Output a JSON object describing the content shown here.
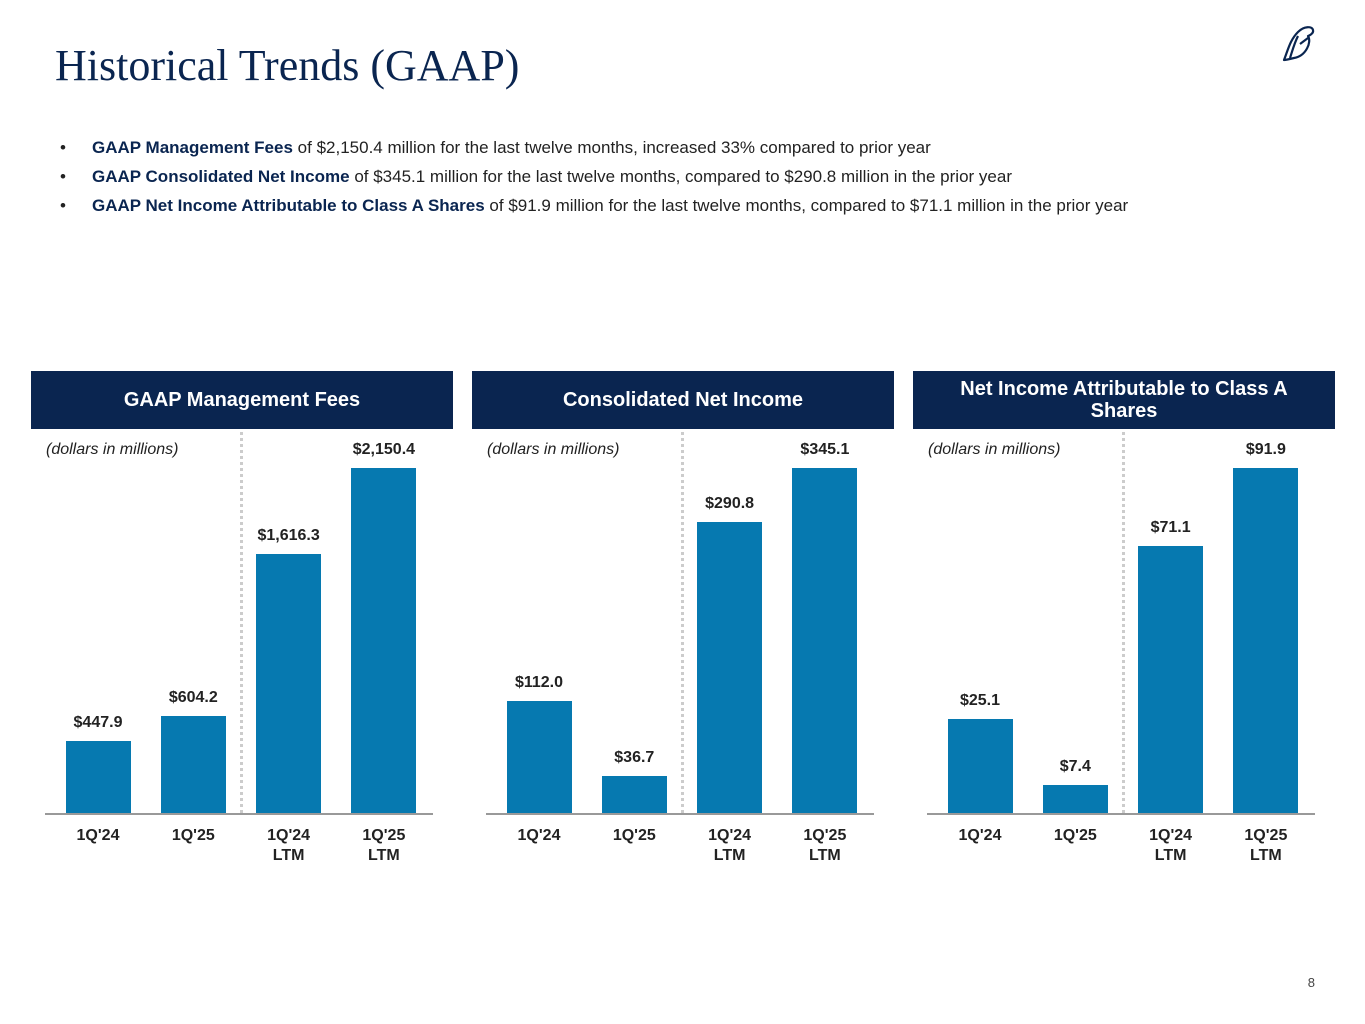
{
  "title": "Historical Trends (GAAP)",
  "bullets": [
    {
      "bold": "GAAP Management Fees",
      "text": "of $2,150.4 million for the last twelve months, increased 33% compared to prior year"
    },
    {
      "bold": "GAAP Consolidated Net Income",
      "text": "of $345.1 million for the last twelve months, compared to $290.8 million in the prior year"
    },
    {
      "bold": "GAAP Net Income Attributable to Class A Shares",
      "text": "of $91.9 million for the last twelve months, compared to $71.1 million in the prior year"
    }
  ],
  "page_number": "8",
  "chart_data": [
    {
      "type": "bar",
      "title": "GAAP Management Fees",
      "subtitle": "(dollars in millions)",
      "categories": [
        "1Q'24",
        "1Q'25",
        "1Q'24 LTM",
        "1Q'25 LTM"
      ],
      "values": [
        447.9,
        604.2,
        1616.3,
        2150.4
      ],
      "value_labels": [
        "$447.9",
        "$604.2",
        "$1,616.3",
        "$2,150.4"
      ],
      "color": "#0679b0"
    },
    {
      "type": "bar",
      "title": "Consolidated Net Income",
      "subtitle": "(dollars in millions)",
      "categories": [
        "1Q'24",
        "1Q'25",
        "1Q'24 LTM",
        "1Q'25 LTM"
      ],
      "values": [
        112.0,
        36.7,
        290.8,
        345.1
      ],
      "value_labels": [
        "$112.0",
        "$36.7",
        "$290.8",
        "$345.1"
      ],
      "color": "#0679b0"
    },
    {
      "type": "bar",
      "title": "Net Income Attributable to Class A Shares",
      "subtitle": "(dollars in millions)",
      "categories": [
        "1Q'24",
        "1Q'25",
        "1Q'24 LTM",
        "1Q'25 LTM"
      ],
      "values": [
        25.1,
        7.4,
        71.1,
        91.9
      ],
      "value_labels": [
        "$25.1",
        "$7.4",
        "$71.1",
        "$91.9"
      ],
      "color": "#0679b0"
    }
  ]
}
